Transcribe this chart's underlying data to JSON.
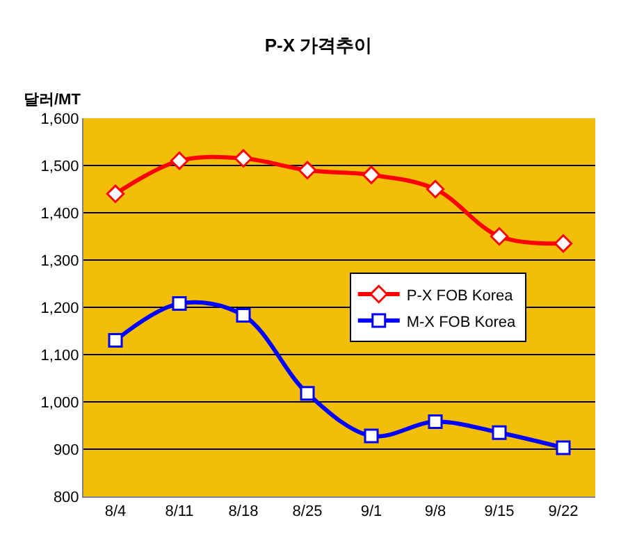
{
  "chart_data": {
    "type": "line",
    "title": "P-X 가격추이",
    "ylabel": "달러/MT",
    "categories": [
      "8/4",
      "8/11",
      "8/18",
      "8/25",
      "9/1",
      "9/8",
      "9/15",
      "9/22"
    ],
    "series": [
      {
        "name": "P-X FOB Korea",
        "color": "#ff0000",
        "marker": "diamond",
        "values": [
          1440,
          1510,
          1515,
          1490,
          1480,
          1450,
          1350,
          1335
        ]
      },
      {
        "name": "M-X FOB Korea",
        "color": "#0000ff",
        "marker": "square",
        "values": [
          1130,
          1208,
          1183,
          1018,
          928,
          958,
          935,
          903
        ]
      }
    ],
    "ylim": [
      800,
      1600
    ],
    "yticks": [
      {
        "value": 800,
        "label": "800"
      },
      {
        "value": 900,
        "label": "900"
      },
      {
        "value": 1000,
        "label": "1,000"
      },
      {
        "value": 1100,
        "label": "1,100"
      },
      {
        "value": 1200,
        "label": "1,200"
      },
      {
        "value": 1300,
        "label": "1,300"
      },
      {
        "value": 1400,
        "label": "1,400"
      },
      {
        "value": 1500,
        "label": "1,500"
      },
      {
        "value": 1600,
        "label": "1,600"
      }
    ],
    "grid": "y",
    "legend": "right",
    "line_style": "solid"
  }
}
